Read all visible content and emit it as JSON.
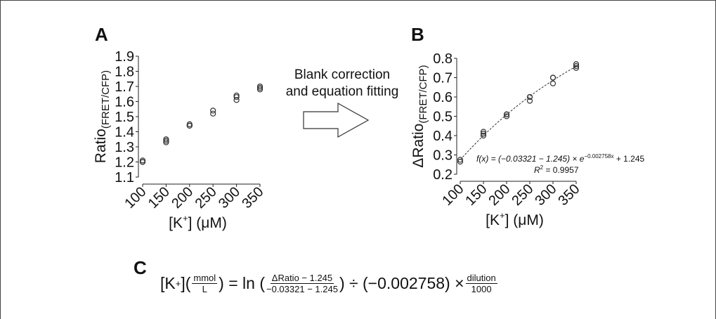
{
  "chart_data": [
    {
      "type": "scatter",
      "panel": "A",
      "ylabel": "Ratio",
      "ylabel_sub": "(FRET/CFP)",
      "xlabel": [
        "[K",
        "+",
        "] (μM)"
      ],
      "x": [
        100,
        100,
        100,
        150,
        150,
        150,
        200,
        200,
        200,
        250,
        250,
        300,
        300,
        300,
        350,
        350,
        350
      ],
      "values": [
        1.2,
        1.21,
        1.2,
        1.33,
        1.34,
        1.35,
        1.44,
        1.44,
        1.45,
        1.52,
        1.54,
        1.61,
        1.63,
        1.64,
        1.68,
        1.69,
        1.7
      ],
      "color": "#333333",
      "xlim": [
        100,
        350
      ],
      "xticks": [
        100,
        150,
        200,
        250,
        300,
        350
      ],
      "ylim": [
        1.1,
        1.9
      ],
      "yticks": [
        1.1,
        1.2,
        1.3,
        1.4,
        1.5,
        1.6,
        1.7,
        1.8,
        1.9
      ]
    },
    {
      "type": "scatter",
      "panel": "B",
      "ylabel": "ΔRatio",
      "ylabel_sub": "(FRET/CFP)",
      "xlabel": [
        "[K",
        "+",
        "] (μM)"
      ],
      "x": [
        100,
        100,
        150,
        150,
        150,
        200,
        200,
        200,
        250,
        250,
        250,
        300,
        300,
        300,
        350,
        350,
        350
      ],
      "values": [
        0.265,
        0.275,
        0.4,
        0.41,
        0.42,
        0.5,
        0.51,
        0.51,
        0.58,
        0.6,
        0.6,
        0.67,
        0.7,
        0.7,
        0.75,
        0.76,
        0.77
      ],
      "color": "#333333",
      "xlim": [
        100,
        350
      ],
      "xticks": [
        100,
        150,
        200,
        250,
        300,
        350
      ],
      "ylim": [
        0.2,
        0.8
      ],
      "yticks": [
        0.2,
        0.3,
        0.4,
        0.5,
        0.6,
        0.7,
        0.8
      ],
      "fit": {
        "a": -0.03321,
        "b": 1.245,
        "k": -0.002758,
        "label": [
          "f(x) = (−0.03321 − 1.245) × e",
          "−0.002758x",
          " + 1.245"
        ],
        "r2": [
          "R",
          "2",
          " = 0.9957"
        ]
      }
    }
  ],
  "arrow_text": [
    "Blank correction",
    "and equation fitting"
  ],
  "panel_c": {
    "letter": "C",
    "equation": {
      "lhs": "[K",
      "lhs_sup": "+",
      "open": "](",
      "unit_num": "mmol",
      "unit_den": "L",
      "mid1": ") = ln (",
      "frac_num": "ΔRatio − 1.245",
      "frac_den": "−0.03321 − 1.245",
      "mid2": ") ÷ (−0.002758) ×",
      "dil_num": "dilution",
      "dil_den": "1000"
    }
  }
}
